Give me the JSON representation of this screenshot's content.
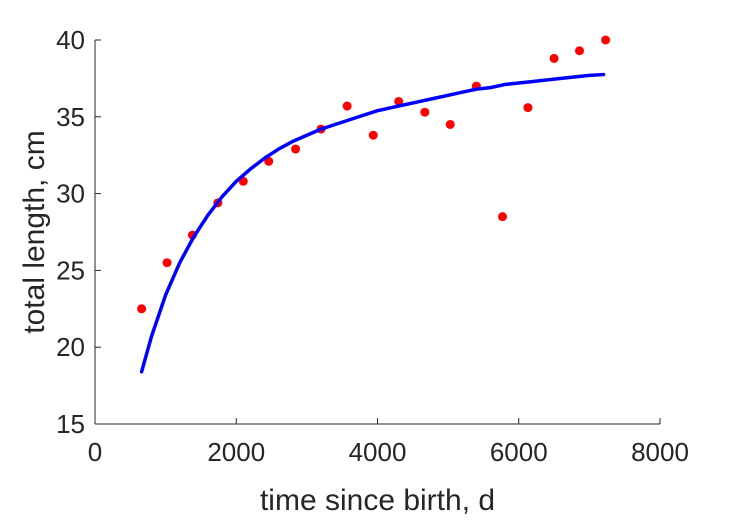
{
  "chart_data": {
    "type": "scatter",
    "title": "",
    "xlabel": "time since birth, d",
    "ylabel": "total length, cm",
    "xlim": [
      0,
      8000
    ],
    "ylim": [
      15,
      40
    ],
    "xticks": [
      0,
      2000,
      4000,
      6000,
      8000
    ],
    "yticks": [
      15,
      20,
      25,
      30,
      35,
      40
    ],
    "xtick_labels": [
      "0",
      "2000",
      "4000",
      "6000",
      "8000"
    ],
    "ytick_labels": [
      "15",
      "20",
      "25",
      "30",
      "35",
      "40"
    ],
    "grid": false,
    "legend": "none",
    "series": [
      {
        "kind": "scatter",
        "color": "#ff0000",
        "points": [
          [
            660,
            22.5
          ],
          [
            1020,
            25.5
          ],
          [
            1380,
            27.3
          ],
          [
            1740,
            29.4
          ],
          [
            2100,
            30.8
          ],
          [
            2460,
            32.1
          ],
          [
            2840,
            32.9
          ],
          [
            3200,
            34.2
          ],
          [
            3570,
            35.7
          ],
          [
            3940,
            33.8
          ],
          [
            4300,
            36.0
          ],
          [
            4670,
            35.3
          ],
          [
            5030,
            34.5
          ],
          [
            5400,
            37.0
          ],
          [
            5770,
            28.5
          ],
          [
            6130,
            35.6
          ],
          [
            6500,
            38.8
          ],
          [
            6860,
            39.3
          ],
          [
            7230,
            40.0
          ]
        ]
      },
      {
        "kind": "line",
        "color": "#0000ff",
        "points": [
          [
            660,
            18.4
          ],
          [
            800,
            20.7
          ],
          [
            1000,
            23.4
          ],
          [
            1200,
            25.5
          ],
          [
            1400,
            27.2
          ],
          [
            1600,
            28.6
          ],
          [
            1800,
            29.8
          ],
          [
            2000,
            30.8
          ],
          [
            2200,
            31.6
          ],
          [
            2400,
            32.3
          ],
          [
            2600,
            32.9
          ],
          [
            2800,
            33.4
          ],
          [
            3000,
            33.8
          ],
          [
            3200,
            34.2
          ],
          [
            3400,
            34.5
          ],
          [
            3600,
            34.8
          ],
          [
            3800,
            35.1
          ],
          [
            4000,
            35.4
          ],
          [
            4200,
            35.6
          ],
          [
            4400,
            35.8
          ],
          [
            4600,
            36.0
          ],
          [
            4800,
            36.2
          ],
          [
            5000,
            36.4
          ],
          [
            5200,
            36.6
          ],
          [
            5400,
            36.8
          ],
          [
            5600,
            36.9
          ],
          [
            5800,
            37.1
          ],
          [
            6000,
            37.2
          ],
          [
            6200,
            37.3
          ],
          [
            6400,
            37.4
          ],
          [
            6600,
            37.5
          ],
          [
            6800,
            37.6
          ],
          [
            7000,
            37.7
          ],
          [
            7200,
            37.75
          ]
        ]
      }
    ]
  }
}
